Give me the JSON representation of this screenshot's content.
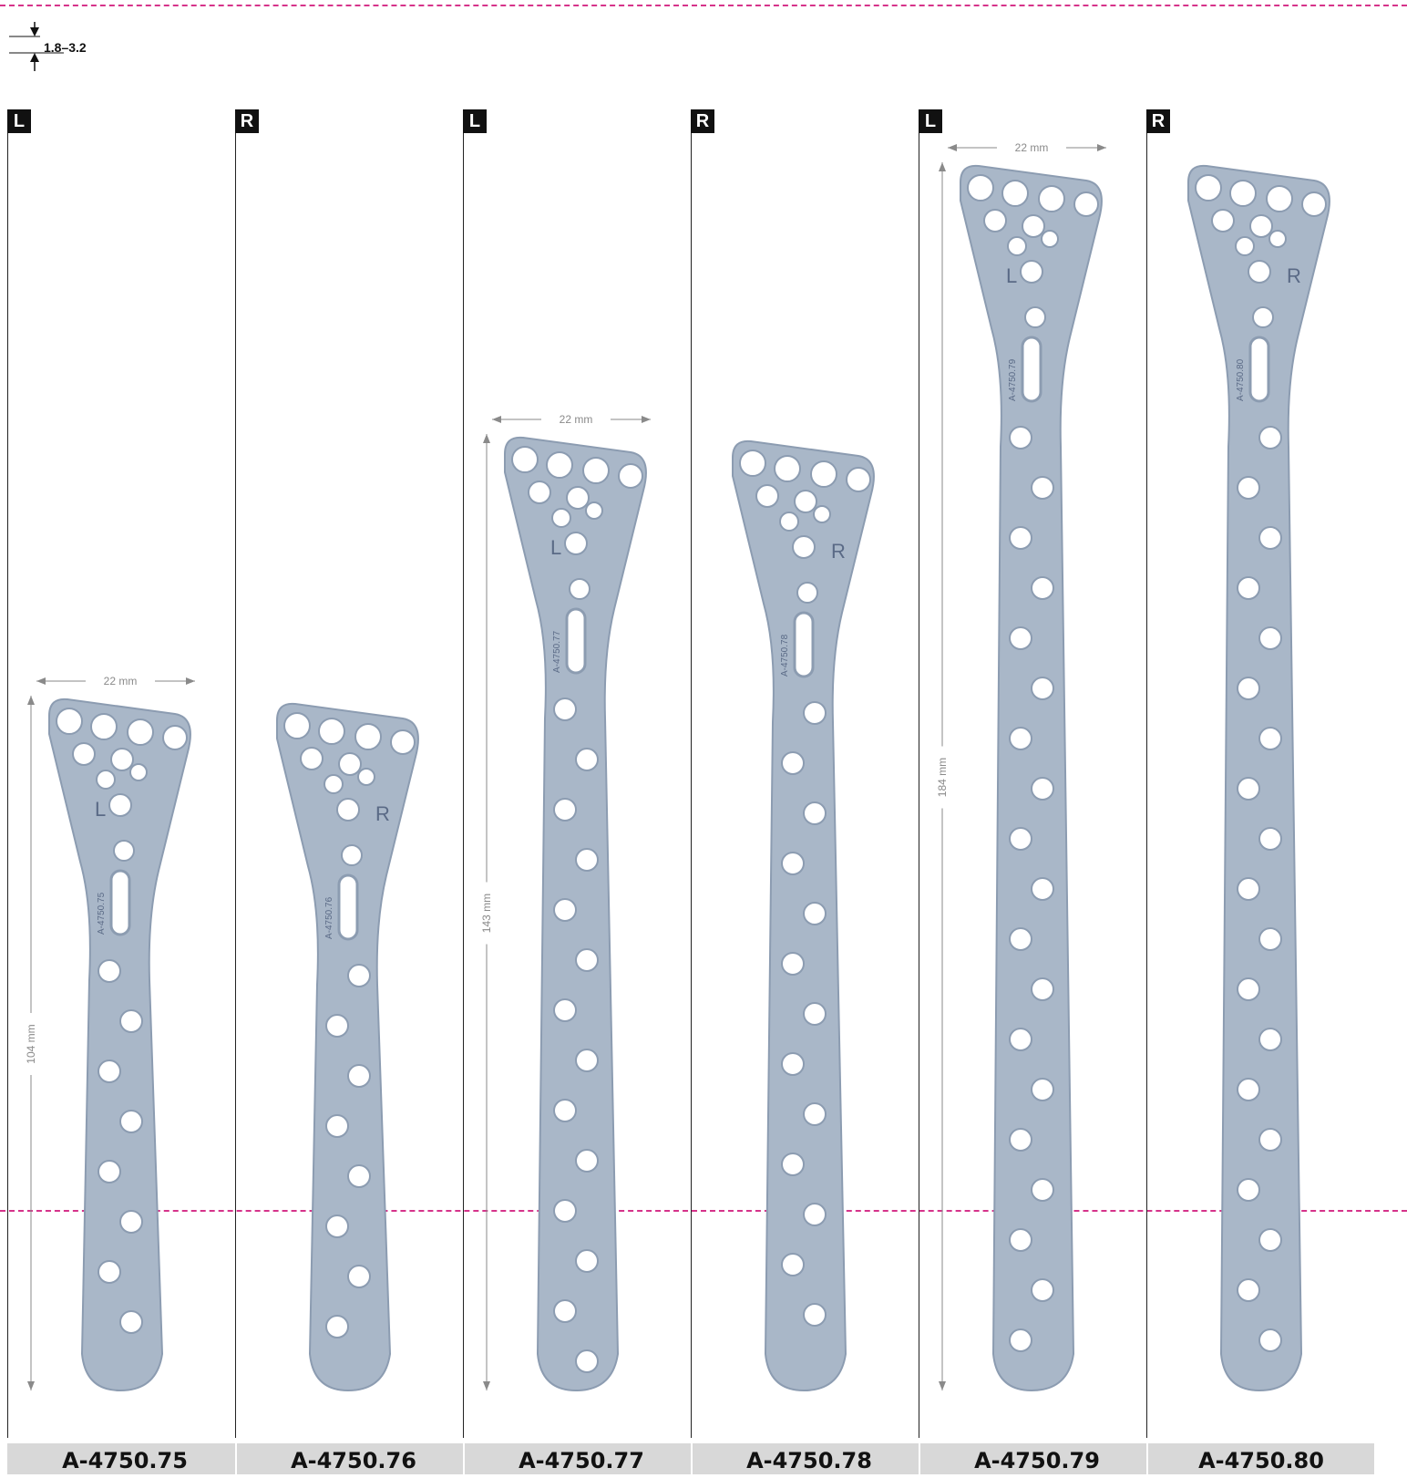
{
  "thickness_label": "1.8–3.2",
  "width_label": "22 mm",
  "plates": [
    {
      "side": "L",
      "code": "A-4750.75",
      "length_label": "104 mm",
      "engraving": "A-4750.75",
      "side_letter": "L"
    },
    {
      "side": "R",
      "code": "A-4750.76",
      "length_label": "",
      "engraving": "A-4750.76",
      "side_letter": "R"
    },
    {
      "side": "L",
      "code": "A-4750.77",
      "length_label": "143 mm",
      "engraving": "A-4750.77",
      "side_letter": "L"
    },
    {
      "side": "R",
      "code": "A-4750.78",
      "length_label": "",
      "engraving": "A-4750.78",
      "side_letter": "R"
    },
    {
      "side": "L",
      "code": "A-4750.79",
      "length_label": "184 mm",
      "engraving": "A-4750.79",
      "side_letter": "L"
    },
    {
      "side": "R",
      "code": "A-4750.80",
      "length_label": "",
      "engraving": "A-4750.80",
      "side_letter": "R"
    }
  ],
  "colors": {
    "plate": "#a9b7c8",
    "plate_edge": "#8c9cb1",
    "hole": "#ffffff",
    "guide": "#d6338a"
  }
}
